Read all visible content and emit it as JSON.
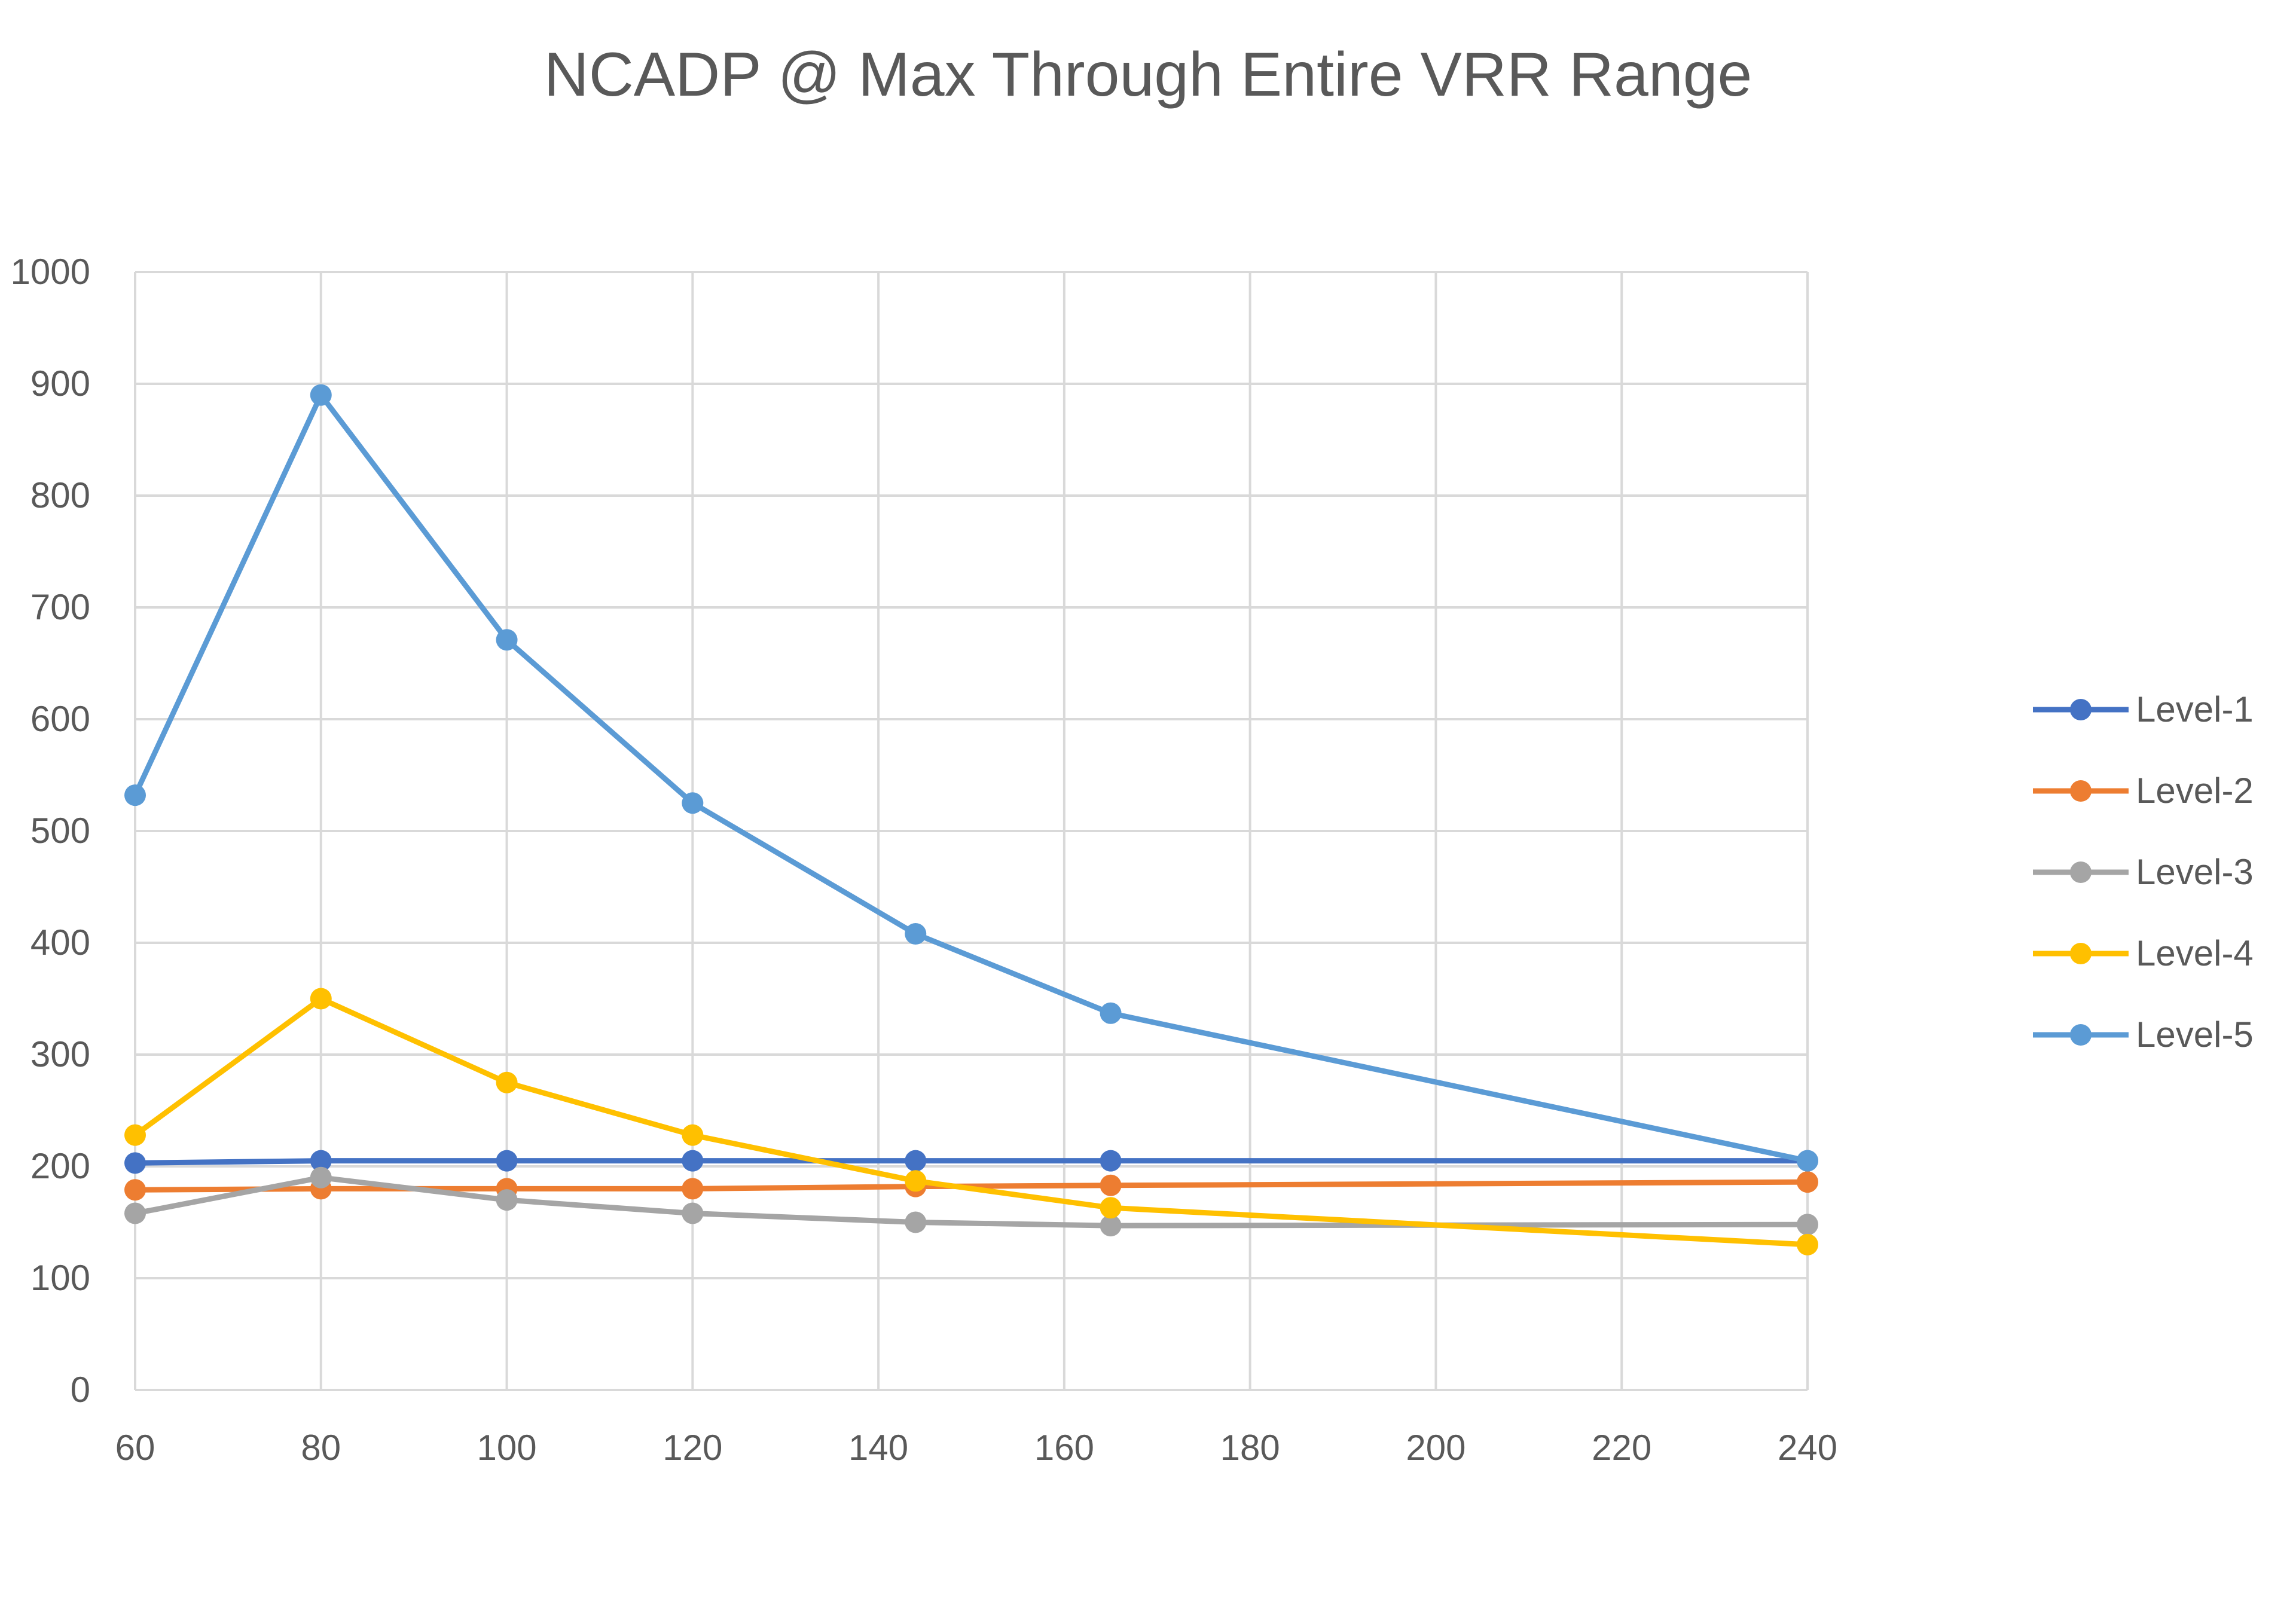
{
  "chart_data": {
    "type": "line",
    "title": "NCADP @ Max Through Entire VRR Range",
    "xlabel": "",
    "ylabel": "",
    "xlim": [
      60,
      240
    ],
    "ylim": [
      0,
      1000
    ],
    "x_ticks": [
      60,
      80,
      100,
      120,
      140,
      160,
      180,
      200,
      220,
      240
    ],
    "y_ticks": [
      0,
      100,
      200,
      300,
      400,
      500,
      600,
      700,
      800,
      900,
      1000
    ],
    "grid": true,
    "legend_position": "right",
    "x": [
      60,
      80,
      100,
      120,
      144,
      165,
      240
    ],
    "series": [
      {
        "name": "Level-1",
        "color": "#4472C4",
        "values": [
          203,
          205,
          205,
          205,
          205,
          205,
          205
        ]
      },
      {
        "name": "Level-2",
        "color": "#ED7D31",
        "values": [
          179,
          180,
          180,
          180,
          182,
          183,
          186
        ]
      },
      {
        "name": "Level-3",
        "color": "#A5A5A5",
        "values": [
          158,
          190,
          170,
          158,
          150,
          147,
          148
        ]
      },
      {
        "name": "Level-4",
        "color": "#FFC000",
        "values": [
          228,
          350,
          275,
          228,
          187,
          163,
          130
        ]
      },
      {
        "name": "Level-5",
        "color": "#5B9BD5",
        "values": [
          532,
          890,
          671,
          525,
          408,
          337,
          205
        ]
      }
    ]
  }
}
